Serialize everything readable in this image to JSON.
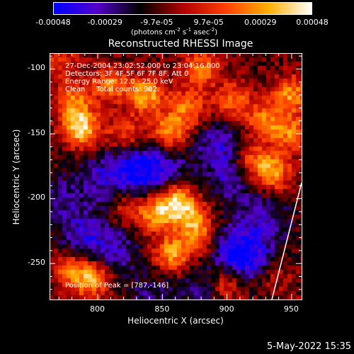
{
  "colorbar": {
    "ticks": [
      "-0.00048",
      "-0.00029",
      "-9.7e-05",
      "9.7e-05",
      "0.00029",
      "0.00048"
    ],
    "units_prefix": "(photons cm",
    "units_exp1": "-2",
    "units_mid": " s",
    "units_exp2": "-1",
    "units_mid2": " asec",
    "units_exp3": "-2",
    "units_suffix": ")",
    "range": [
      -0.00048,
      0.00048
    ],
    "colormap": [
      "#0000ff",
      "#5500cc",
      "#000000",
      "#b00000",
      "#ff4000",
      "#ffb000",
      "#ffffff"
    ]
  },
  "chart_data": {
    "type": "heatmap",
    "title": "Reconstructed RHESSI Image",
    "xlabel": "Heliocentric X (arcsec)",
    "ylabel": "Heliocentric Y (arcsec)",
    "xlim": [
      763,
      958
    ],
    "ylim": [
      -278,
      -88
    ],
    "xticks": [
      800,
      850,
      900,
      950
    ],
    "yticks": [
      -100,
      -150,
      -200,
      -250
    ],
    "annotations": {
      "time": "27-Dec-2004 23:02:52.000 to 23:04:16.000",
      "detectors": "Detectors: 3F 4F 5F 6F 7F 8F, Att 0",
      "energy": "Energy Range: 12.0 - 25.0 keV",
      "clean": "Clean     Total counts: 902.",
      "peak": "Position of Peak = [787,-146]"
    },
    "limb_line": {
      "x": [
        935,
        958
      ],
      "y": [
        -278,
        -188
      ]
    },
    "hotspots": [
      {
        "x": 787,
        "y": -146,
        "v": 0.00048
      },
      {
        "x": 782,
        "y": -125,
        "v": 0.0003
      },
      {
        "x": 810,
        "y": -112,
        "v": 0.0003
      },
      {
        "x": 838,
        "y": -120,
        "v": 0.0004
      },
      {
        "x": 855,
        "y": -150,
        "v": 0.00038
      },
      {
        "x": 870,
        "y": -130,
        "v": 0.00032
      },
      {
        "x": 880,
        "y": -100,
        "v": 0.0003
      },
      {
        "x": 905,
        "y": -125,
        "v": 0.0003
      },
      {
        "x": 930,
        "y": -140,
        "v": 0.0003
      },
      {
        "x": 950,
        "y": -120,
        "v": 0.00035
      },
      {
        "x": 950,
        "y": -150,
        "v": 0.0003
      },
      {
        "x": 935,
        "y": -180,
        "v": 0.0004
      },
      {
        "x": 918,
        "y": -170,
        "v": 0.00028
      },
      {
        "x": 862,
        "y": -203,
        "v": 0.00045
      },
      {
        "x": 845,
        "y": -212,
        "v": 0.00035
      },
      {
        "x": 875,
        "y": -218,
        "v": 0.0003
      },
      {
        "x": 822,
        "y": -208,
        "v": 0.0002
      },
      {
        "x": 858,
        "y": -243,
        "v": 0.00038
      },
      {
        "x": 880,
        "y": -232,
        "v": 0.0002
      },
      {
        "x": 795,
        "y": -262,
        "v": 0.0004
      },
      {
        "x": 778,
        "y": -255,
        "v": 0.00025
      },
      {
        "x": 900,
        "y": -265,
        "v": 0.00025
      },
      {
        "x": 935,
        "y": -260,
        "v": 0.00015
      },
      {
        "x": 822,
        "y": -150,
        "v": 0.00025
      },
      {
        "x": 770,
        "y": -95,
        "v": 0.0002
      }
    ],
    "coldspots": [
      {
        "x": 830,
        "y": -178,
        "v": -0.0003
      },
      {
        "x": 850,
        "y": -175,
        "v": -0.00025
      },
      {
        "x": 805,
        "y": -185,
        "v": -0.00022
      },
      {
        "x": 790,
        "y": -228,
        "v": -0.00025
      },
      {
        "x": 815,
        "y": -240,
        "v": -0.0002
      },
      {
        "x": 905,
        "y": -240,
        "v": -0.0003
      },
      {
        "x": 920,
        "y": -248,
        "v": -0.00025
      },
      {
        "x": 895,
        "y": -160,
        "v": -0.00025
      },
      {
        "x": 905,
        "y": -185,
        "v": -0.0002
      },
      {
        "x": 770,
        "y": -200,
        "v": -0.00018
      },
      {
        "x": 930,
        "y": -215,
        "v": -0.0002
      },
      {
        "x": 840,
        "y": -275,
        "v": -0.00015
      },
      {
        "x": 880,
        "y": -270,
        "v": -0.00015
      }
    ]
  },
  "footer": {
    "timestamp": "5-May-2022 15:35"
  }
}
